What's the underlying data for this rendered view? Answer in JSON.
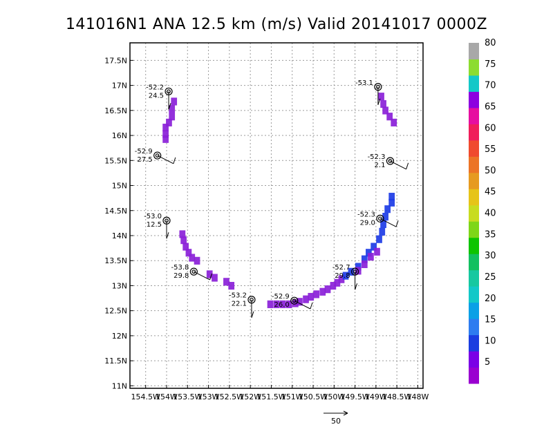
{
  "chart_data": {
    "type": "scatter",
    "title": "141016N1  ANA  12.5 km (m/s) Valid 20141017  0000Z",
    "xlim": [
      -154.875,
      -147.875
    ],
    "ylim": [
      10.95,
      17.85
    ],
    "grid": true,
    "x_ticks": [
      -154.5,
      -154,
      -153.5,
      -153,
      -152.5,
      -152,
      -151.5,
      -151,
      -150.5,
      -150,
      -149.5,
      -149,
      -148.5,
      -148
    ],
    "x_tick_labels": [
      "154.5W",
      "154W",
      "153.5W",
      "153W",
      "152.5W",
      "152W",
      "151.5W",
      "151W",
      "150.5W",
      "150W",
      "149.5W",
      "149W",
      "148.5W",
      "148W"
    ],
    "y_ticks": [
      11,
      11.5,
      12,
      12.5,
      13,
      13.5,
      14,
      14.5,
      15,
      15.5,
      16,
      16.5,
      17,
      17.5
    ],
    "y_tick_labels": [
      "11N",
      "11.5N",
      "12N",
      "12.5N",
      "13N",
      "13.5N",
      "14N",
      "14.5N",
      "15N",
      "15.5N",
      "16N",
      "16.5N",
      "17N",
      "17.5N"
    ],
    "colorbar": {
      "labels": [
        "5",
        "10",
        "15",
        "20",
        "25",
        "30",
        "35",
        "40",
        "45",
        "50",
        "55",
        "60",
        "65",
        "70",
        "75",
        "80"
      ],
      "colors": [
        "#9a00d0",
        "#7a00e6",
        "#1b3de0",
        "#2e7cf0",
        "#0aa0e6",
        "#12c8c8",
        "#16c8a0",
        "#12c060",
        "#0ec400",
        "#7ed618",
        "#c8dc20",
        "#e6c418",
        "#e69a20",
        "#ec7426",
        "#f04a2e",
        "#f01e5a",
        "#e60ea0",
        "#8c00e0",
        "#14c8c8",
        "#8cdc30",
        "#a8a8a8"
      ]
    },
    "observations": [
      {
        "lon": -153.95,
        "lat": 16.88,
        "temp": "-52.2",
        "wind": "24.5"
      },
      {
        "lon": -154.22,
        "lat": 15.6,
        "temp": "-52.9",
        "wind": "27.5"
      },
      {
        "lon": -154.0,
        "lat": 14.3,
        "temp": "-53.0",
        "wind": "12.5"
      },
      {
        "lon": -153.35,
        "lat": 13.28,
        "temp": "-53.8",
        "wind": "29.8"
      },
      {
        "lon": -151.97,
        "lat": 12.72,
        "temp": "-53.2",
        "wind": "22.1"
      },
      {
        "lon": -150.95,
        "lat": 12.7,
        "temp": "-52.9",
        "wind": "26.0"
      },
      {
        "lon": -149.5,
        "lat": 13.28,
        "temp": "-52.7",
        "wind": "29.8"
      },
      {
        "lon": -148.9,
        "lat": 14.34,
        "temp": "-52.3",
        "wind": "29.0"
      },
      {
        "lon": -148.95,
        "lat": 16.97,
        "temp": "-53.1",
        "wind": ""
      },
      {
        "lon": -148.66,
        "lat": 15.49,
        "temp": "-52.3",
        "wind": "2.1"
      }
    ],
    "wind_swaths": [
      {
        "color": "#8a20d8",
        "cells": [
          [
            -153.85,
            16.7
          ],
          [
            -153.9,
            16.55
          ],
          [
            -153.9,
            16.4
          ],
          [
            -153.97,
            16.28
          ],
          [
            -154.05,
            16.18
          ],
          [
            -154.05,
            16.05
          ],
          [
            -154.05,
            15.95
          ]
        ]
      },
      {
        "color": "#8a20d8",
        "cells": [
          [
            -153.65,
            14.05
          ],
          [
            -153.62,
            13.93
          ],
          [
            -153.57,
            13.8
          ],
          [
            -153.5,
            13.68
          ],
          [
            -153.42,
            13.58
          ],
          [
            -153.3,
            13.52
          ],
          [
            -153.0,
            13.25
          ],
          [
            -152.88,
            13.18
          ],
          [
            -152.6,
            13.1
          ],
          [
            -152.48,
            13.02
          ]
        ]
      },
      {
        "color": "#8a20d8",
        "cells": [
          [
            -151.55,
            12.65
          ],
          [
            -151.4,
            12.65
          ],
          [
            -151.25,
            12.65
          ],
          [
            -151.1,
            12.65
          ],
          [
            -150.95,
            12.67
          ],
          [
            -150.85,
            12.7
          ],
          [
            -150.7,
            12.75
          ],
          [
            -150.58,
            12.8
          ],
          [
            -150.45,
            12.85
          ],
          [
            -150.3,
            12.9
          ],
          [
            -150.18,
            12.95
          ],
          [
            -150.05,
            13.02
          ],
          [
            -149.95,
            13.08
          ],
          [
            -149.85,
            13.15
          ]
        ]
      },
      {
        "color": "#1d3ce6",
        "cells": [
          [
            -149.75,
            13.22
          ],
          [
            -149.62,
            13.3
          ],
          [
            -149.45,
            13.4
          ],
          [
            -149.3,
            13.55
          ],
          [
            -149.2,
            13.68
          ],
          [
            -149.08,
            13.8
          ],
          [
            -148.95,
            13.95
          ],
          [
            -148.88,
            14.1
          ],
          [
            -148.85,
            14.25
          ],
          [
            -148.8,
            14.4
          ],
          [
            -148.75,
            14.55
          ],
          [
            -148.65,
            14.68
          ],
          [
            -148.65,
            14.8
          ]
        ]
      },
      {
        "color": "#8a20d8",
        "cells": [
          [
            -149.3,
            13.45
          ],
          [
            -149.45,
            13.32
          ],
          [
            -149.15,
            13.6
          ],
          [
            -149.0,
            13.7
          ]
        ]
      },
      {
        "color": "#8a20d8",
        "cells": [
          [
            -148.9,
            16.8
          ],
          [
            -148.85,
            16.65
          ],
          [
            -148.8,
            16.52
          ],
          [
            -148.7,
            16.4
          ],
          [
            -148.6,
            16.28
          ]
        ]
      }
    ],
    "reference_vector": {
      "label": "50",
      "speed": 50
    }
  }
}
